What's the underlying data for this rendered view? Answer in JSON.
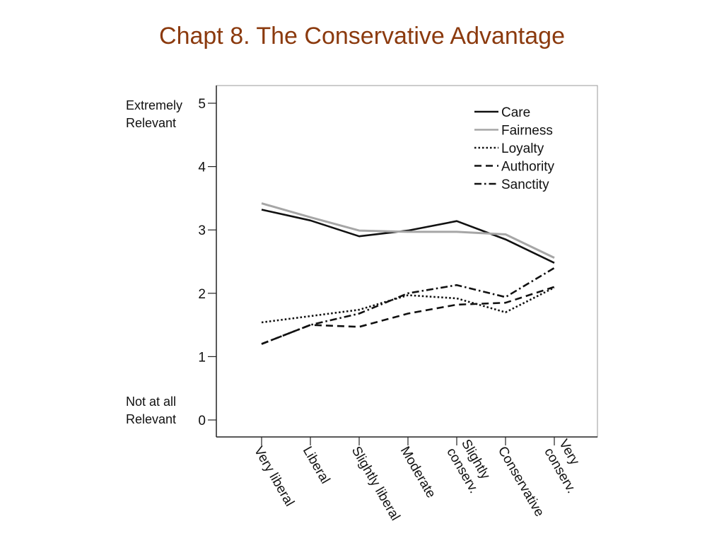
{
  "slide": {
    "title": "Chapt  8.  The Conservative Advantage"
  },
  "chart_data": {
    "type": "line",
    "categories": [
      "Very liberal",
      "Liberal",
      "Slightly liberal",
      "Moderate",
      "Slightly conserv.",
      "Conservative",
      "Very conserv."
    ],
    "x_tick_lines": [
      [
        "Very liberal"
      ],
      [
        "Liberal"
      ],
      [
        "Slightly liberal"
      ],
      [
        "Moderate"
      ],
      [
        "Slightly",
        "conserv."
      ],
      [
        "Conservative"
      ],
      [
        "Very",
        "conserv."
      ]
    ],
    "ylim": [
      0,
      5
    ],
    "yticks": [
      0,
      1,
      2,
      3,
      4,
      5
    ],
    "y_annotations": {
      "top": [
        "Extremely",
        "Relevant"
      ],
      "bottom": [
        "Not at all",
        "Relevant"
      ]
    },
    "legend_position": "top-right",
    "grid": false,
    "series": [
      {
        "name": "Care",
        "values": [
          3.32,
          3.15,
          2.9,
          2.99,
          3.14,
          2.85,
          2.48
        ],
        "color": "#111111",
        "dash": "solid"
      },
      {
        "name": "Fairness",
        "values": [
          3.42,
          3.2,
          2.99,
          2.97,
          2.97,
          2.93,
          2.56
        ],
        "color": "#a6a6a6",
        "dash": "solid"
      },
      {
        "name": "Loyalty",
        "values": [
          1.54,
          1.64,
          1.74,
          1.97,
          1.92,
          1.7,
          2.09
        ],
        "color": "#111111",
        "dash": "dotted"
      },
      {
        "name": "Authority",
        "values": [
          1.2,
          1.5,
          1.47,
          1.68,
          1.82,
          1.85,
          2.1
        ],
        "color": "#111111",
        "dash": "dashed"
      },
      {
        "name": "Sanctity",
        "values": [
          1.2,
          1.5,
          1.68,
          2.0,
          2.13,
          1.94,
          2.4
        ],
        "color": "#111111",
        "dash": "dashdot"
      }
    ]
  }
}
